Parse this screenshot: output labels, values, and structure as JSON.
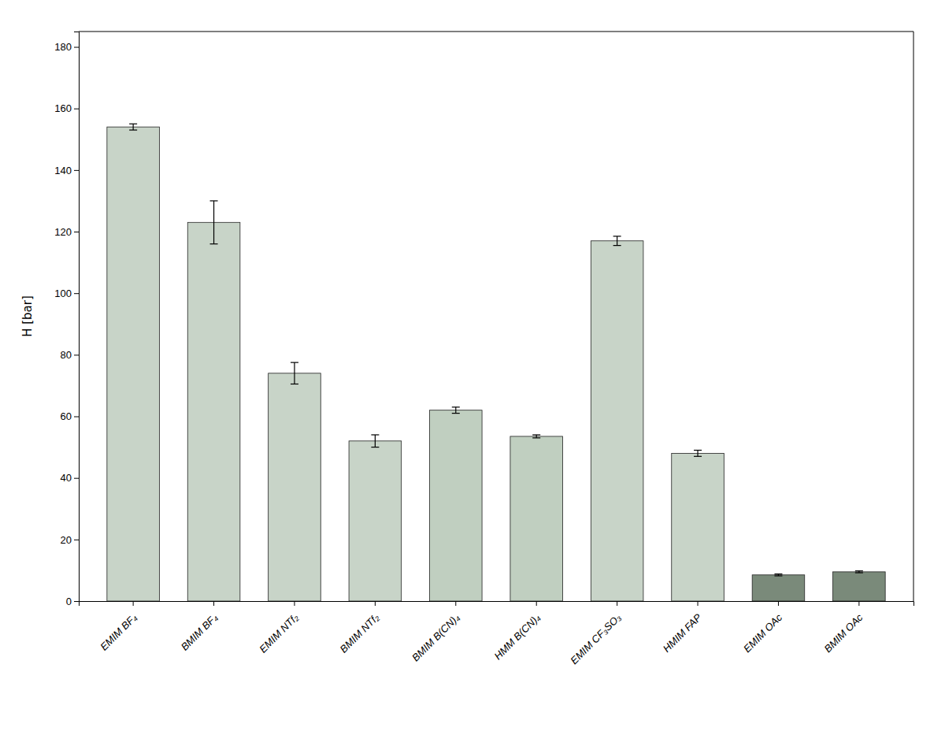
{
  "chart_data": {
    "type": "bar",
    "categories": [
      "EMIM BF₄",
      "BMIM BF₄",
      "EMIM NTf₂",
      "BMIM NTf₂",
      "BMIM B(CN)₄",
      "HMM B(CN)₄",
      "EMIM CF₃SO₃",
      "HMIM FAP",
      "EMIM OAc",
      "BMIM OAc"
    ],
    "values": [
      154.0,
      123.0,
      74.0,
      52.0,
      62.0,
      53.5,
      117.0,
      48.0,
      8.5,
      9.5
    ],
    "errors": [
      1.0,
      7.0,
      3.5,
      2.0,
      1.0,
      0.5,
      1.5,
      1.0,
      0.3,
      0.3
    ],
    "colors": [
      "#c8d4c8",
      "#c8d4c8",
      "#c8d4c8",
      "#c8d4c8",
      "#c0cfc0",
      "#c0cfc0",
      "#c8d4c8",
      "#c8d4c8",
      "#7a8a7a",
      "#7a8a7a"
    ],
    "ylabel": "H [bar]",
    "ylim": [
      0,
      185
    ],
    "yticks": [
      0,
      20,
      40,
      60,
      80,
      100,
      120,
      140,
      160,
      180
    ],
    "grid": false
  }
}
